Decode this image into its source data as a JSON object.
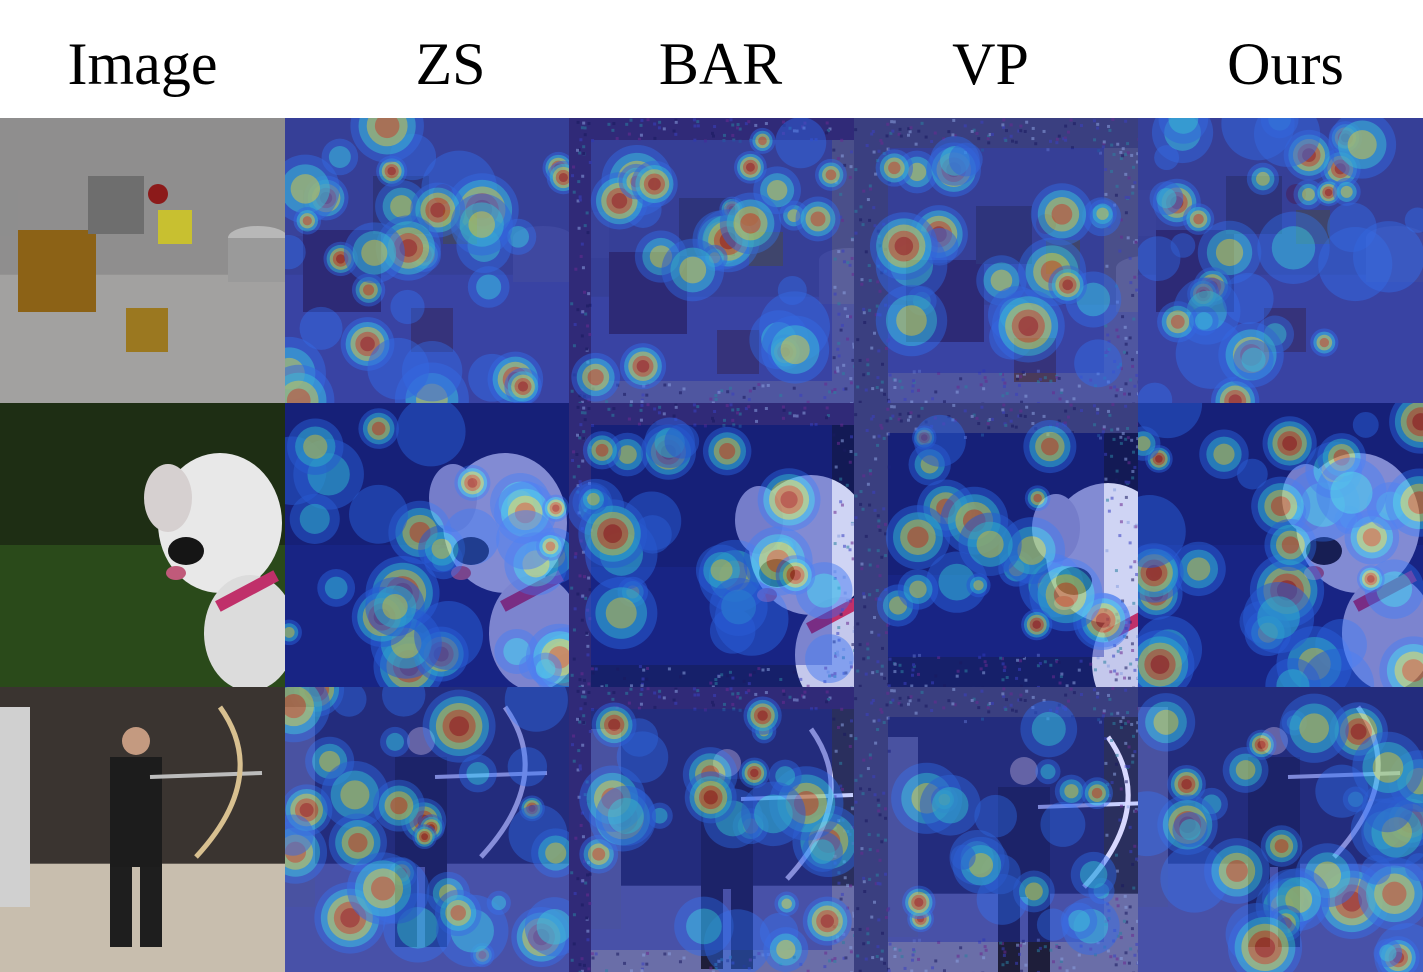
{
  "columns": [
    "Image",
    "ZS",
    "BAR",
    "VP",
    "Ours"
  ],
  "rows": [
    "clevr-scene",
    "dog",
    "archer"
  ],
  "heatmap_colors": [
    "#1c2aa8",
    "#2e6cf0",
    "#35d6e6",
    "#f2e23a",
    "#e2401c",
    "#a8100e"
  ]
}
